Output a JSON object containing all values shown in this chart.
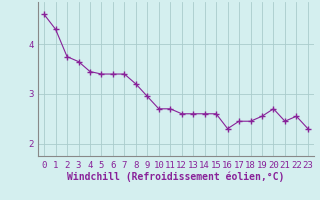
{
  "x": [
    0,
    1,
    2,
    3,
    4,
    5,
    6,
    7,
    8,
    9,
    10,
    11,
    12,
    13,
    14,
    15,
    16,
    17,
    18,
    19,
    20,
    21,
    22,
    23
  ],
  "y": [
    4.6,
    4.3,
    3.75,
    3.65,
    3.45,
    3.4,
    3.4,
    3.4,
    3.2,
    2.95,
    2.7,
    2.7,
    2.6,
    2.6,
    2.6,
    2.6,
    2.3,
    2.45,
    2.45,
    2.55,
    2.7,
    2.45,
    2.55,
    2.3
  ],
  "line_color": "#882299",
  "marker": "+",
  "markersize": 4,
  "linewidth": 0.8,
  "background_color": "#d4efef",
  "grid_color": "#aacccc",
  "xlabel": "Windchill (Refroidissement éolien,°C)",
  "tick_fontsize": 6.5,
  "xlabel_fontsize": 7,
  "ylim": [
    1.75,
    4.85
  ],
  "yticks": [
    2,
    3,
    4
  ],
  "xtick_labels": [
    "0",
    "1",
    "2",
    "3",
    "4",
    "5",
    "6",
    "7",
    "8",
    "9",
    "10",
    "11",
    "12",
    "13",
    "14",
    "15",
    "16",
    "17",
    "18",
    "19",
    "20",
    "21",
    "22",
    "23"
  ]
}
